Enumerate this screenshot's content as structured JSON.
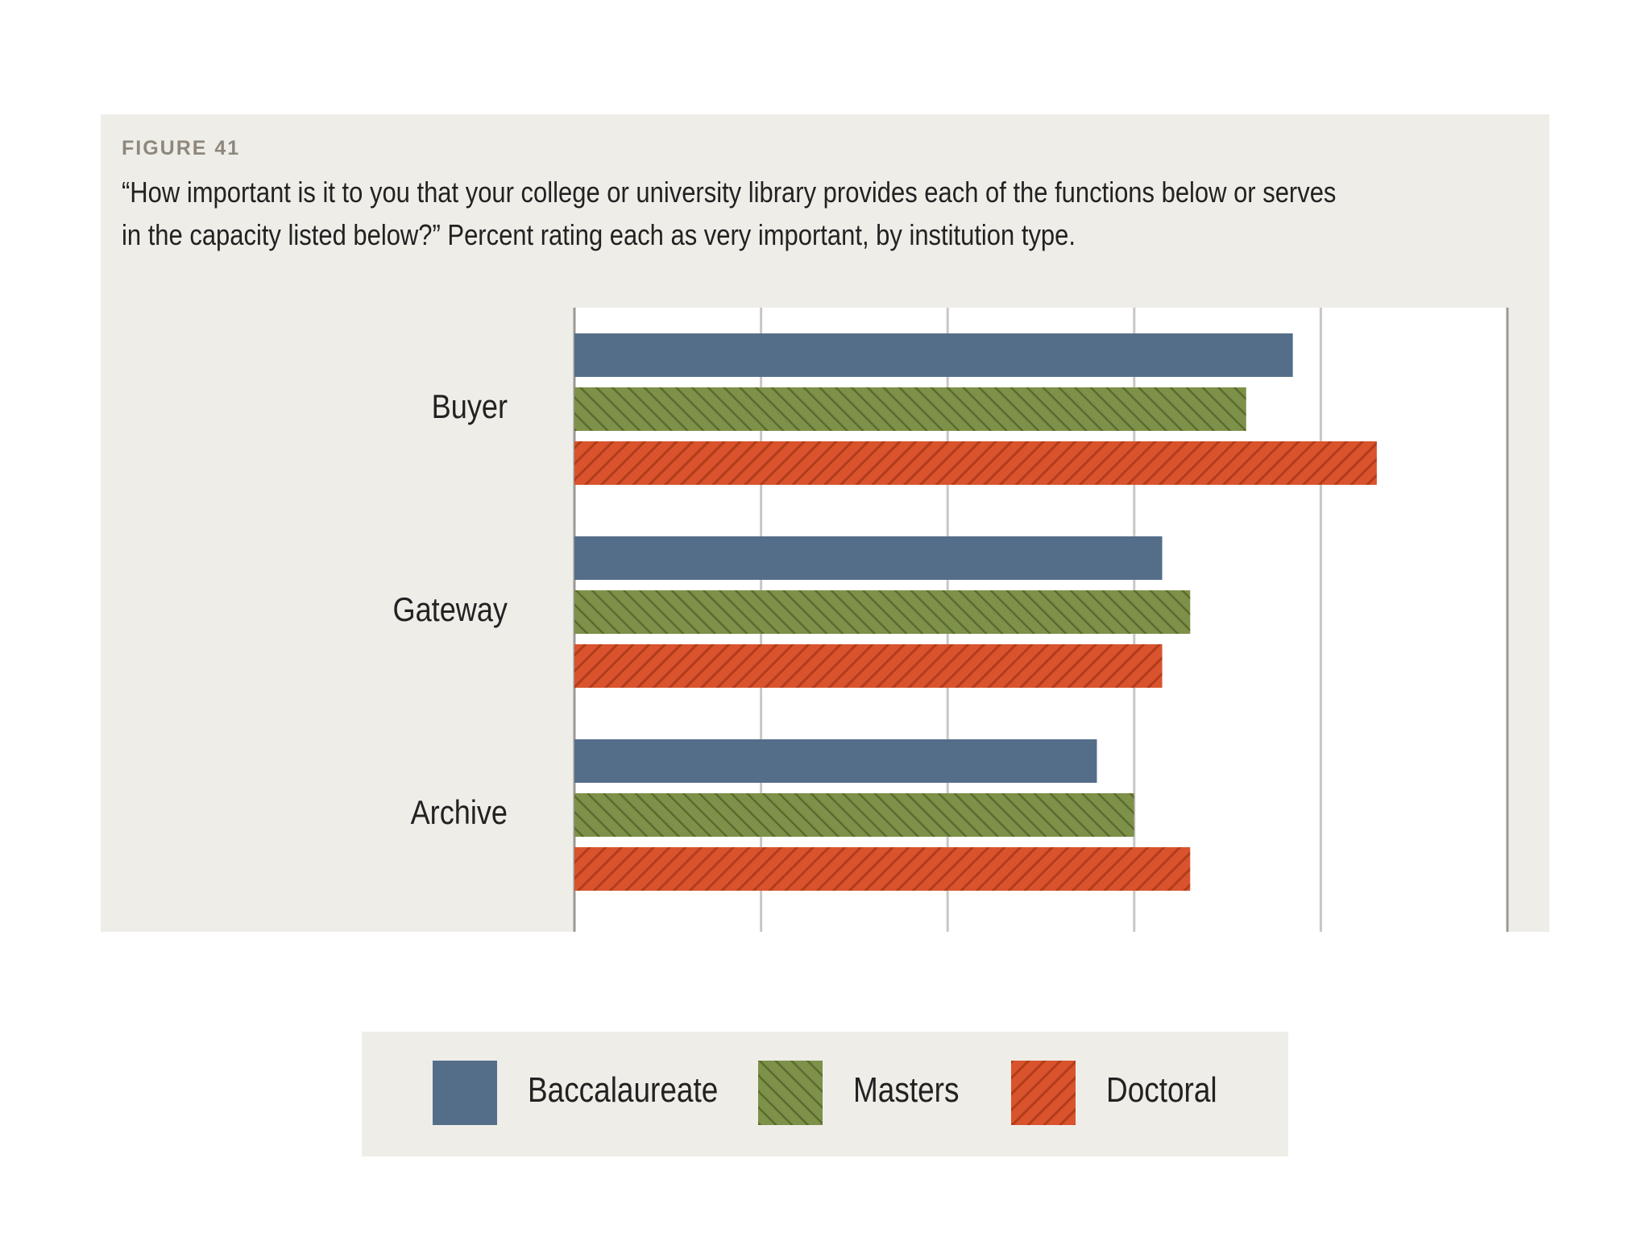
{
  "figure": {
    "label": "FIGURE 41",
    "title_line1": "“How important is it to you that your college or university library provides each of the functions below or serves",
    "title_line2": "in the capacity listed below?” Percent rating each as very important, by institution type."
  },
  "colors": {
    "panel_bg": "#efede8",
    "plot_bg": "#ffffff",
    "grid": "#c9c7c3",
    "axis": "#9b9996",
    "Baccalaureate": "#546e8a",
    "Masters": "#7d9148",
    "Masters_hatch": "#5b6b30",
    "Doctoral": "#d9532c",
    "Doctoral_hatch": "#b23c1b"
  },
  "chart_data": {
    "type": "bar",
    "orientation": "horizontal",
    "categories": [
      "Buyer",
      "Gateway",
      "Archive"
    ],
    "series": [
      {
        "name": "Baccalaureate",
        "values": [
          77,
          63,
          56
        ],
        "pattern": "solid"
      },
      {
        "name": "Masters",
        "values": [
          72,
          66,
          60
        ],
        "pattern": "hatch-back"
      },
      {
        "name": "Doctoral",
        "values": [
          86,
          63,
          66
        ],
        "pattern": "hatch-forward"
      }
    ],
    "xlim": [
      0,
      100
    ],
    "x_gridlines": [
      0,
      20,
      40,
      60,
      80,
      100
    ],
    "tick_labels_shown": false,
    "grid": true,
    "legend_placement": "bottom-center"
  }
}
